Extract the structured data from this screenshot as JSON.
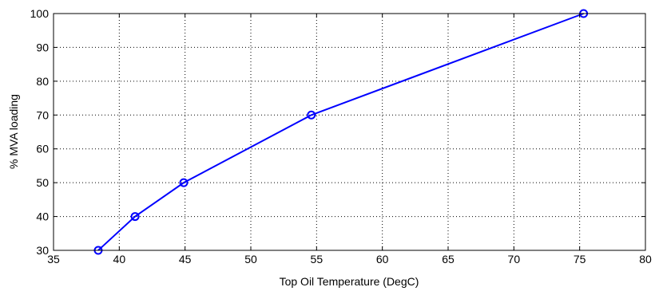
{
  "chart_data": {
    "type": "line",
    "title": "",
    "xlabel": "Top Oil Temperature (DegC)",
    "ylabel": "% MVA loading",
    "xlim": [
      35,
      80
    ],
    "ylim": [
      30,
      100
    ],
    "xticks": [
      35,
      40,
      45,
      50,
      55,
      60,
      65,
      70,
      75,
      80
    ],
    "yticks": [
      30,
      40,
      50,
      60,
      70,
      80,
      90,
      100
    ],
    "grid": true,
    "legend": "none",
    "series": [
      {
        "color": "#0000ff",
        "marker": "circle",
        "x": [
          38.4,
          41.2,
          44.9,
          54.6,
          75.3
        ],
        "y": [
          30,
          40,
          50,
          70,
          100
        ]
      }
    ]
  }
}
